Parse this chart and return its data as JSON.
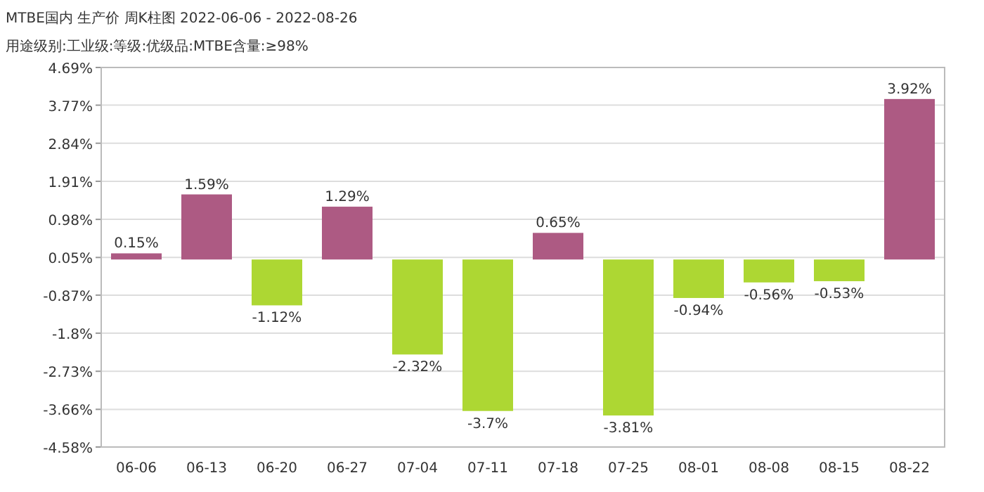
{
  "chart_data": {
    "type": "bar",
    "title": "MTBE国内 生产价 周K柱图 2022-06-06 - 2022-08-26",
    "subtitle": "用途级别:工业级:等级:优级品:MTBE含量:≥98%",
    "categories": [
      "06-06",
      "06-13",
      "06-20",
      "06-27",
      "07-04",
      "07-11",
      "07-18",
      "07-25",
      "08-01",
      "08-08",
      "08-15",
      "08-22"
    ],
    "values": [
      0.15,
      1.59,
      -1.12,
      1.29,
      -2.32,
      -3.7,
      0.65,
      -3.81,
      -0.94,
      -0.56,
      -0.53,
      3.92
    ],
    "value_labels": [
      "0.15%",
      "1.59%",
      "-1.12%",
      "1.29%",
      "-2.32%",
      "-3.7%",
      "0.65%",
      "-3.81%",
      "-0.94%",
      "-0.56%",
      "-0.53%",
      "3.92%"
    ],
    "colors": [
      "#ad5a83",
      "#ad5a83",
      "#add733",
      "#ad5a83",
      "#add733",
      "#add733",
      "#ad5a83",
      "#add733",
      "#add733",
      "#add733",
      "#add733",
      "#ad5a83"
    ],
    "ylim": [
      -4.58,
      4.69
    ],
    "yticks": [
      {
        "value": 4.69,
        "label": "4.69%"
      },
      {
        "value": 3.77,
        "label": "3.77%"
      },
      {
        "value": 2.84,
        "label": "2.84%"
      },
      {
        "value": 1.91,
        "label": "1.91%"
      },
      {
        "value": 0.98,
        "label": "0.98%"
      },
      {
        "value": 0.05,
        "label": "0.05%"
      },
      {
        "value": -0.87,
        "label": "-0.87%"
      },
      {
        "value": -1.8,
        "label": "-1.8%"
      },
      {
        "value": -2.73,
        "label": "-2.73%"
      },
      {
        "value": -3.66,
        "label": "-3.66%"
      },
      {
        "value": -4.58,
        "label": "-4.58%"
      }
    ],
    "grid": "y"
  }
}
